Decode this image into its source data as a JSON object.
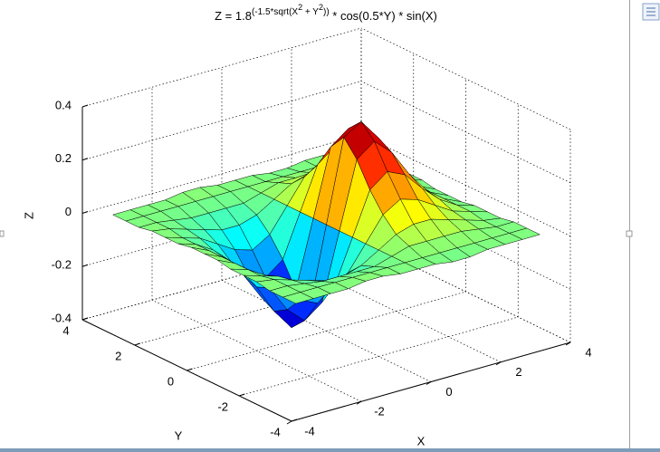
{
  "chart_data": {
    "type": "surface",
    "title": [
      {
        "text": "Z = 1.8",
        "level": 0
      },
      {
        "text": "(-1.5*sqrt(X",
        "level": 1
      },
      {
        "text": "2",
        "level": 2
      },
      {
        "text": " + Y",
        "level": 1
      },
      {
        "text": "2",
        "level": 2
      },
      {
        "text": "))",
        "level": 1
      },
      {
        "text": " * cos(0.5*Y) * sin(X)",
        "level": 0
      }
    ],
    "xlabel": "X",
    "ylabel": "Y",
    "zlabel": "Z",
    "x": [
      -3.5,
      -3,
      -2.5,
      -2,
      -1.5,
      -1,
      -0.5,
      0,
      0.5,
      1,
      1.5,
      2,
      2.5,
      3,
      3.5
    ],
    "y": [
      -3.5,
      -3,
      -2.5,
      -2,
      -1.5,
      -1,
      -0.5,
      0,
      0.5,
      1,
      1.5,
      2,
      2.5,
      3,
      3.5
    ],
    "z": [
      [
        0,
        0,
        0,
        0,
        0.01,
        0.01,
        0,
        0,
        0,
        -0.01,
        -0.01,
        0,
        0,
        0,
        0
      ],
      [
        0,
        0,
        0,
        0,
        0,
        0,
        0,
        0,
        0,
        0,
        0,
        0,
        0,
        0,
        0
      ],
      [
        0,
        0,
        -0.01,
        -0.02,
        -0.02,
        -0.02,
        -0.02,
        0,
        0.02,
        0.02,
        0.02,
        0.02,
        0.01,
        0,
        0
      ],
      [
        0.01,
        0,
        -0.02,
        -0.04,
        -0.06,
        -0.06,
        -0.04,
        0,
        0.04,
        0.06,
        0.06,
        0.04,
        0.02,
        0,
        -0.01
      ],
      [
        0.01,
        -0.01,
        -0.03,
        -0.07,
        -0.11,
        -0.13,
        -0.09,
        0,
        0.09,
        0.13,
        0.11,
        0.07,
        0.03,
        0.01,
        -0.01
      ],
      [
        0.01,
        -0.01,
        -0.05,
        -0.11,
        -0.18,
        -0.21,
        -0.16,
        0,
        0.16,
        0.21,
        0.18,
        0.11,
        0.05,
        0.01,
        -0.01
      ],
      [
        0.02,
        -0.01,
        -0.06,
        -0.14,
        -0.24,
        -0.3,
        -0.25,
        0,
        0.25,
        0.3,
        0.24,
        0.14,
        0.06,
        0.01,
        -0.02
      ],
      [
        0.02,
        -0.01,
        -0.07,
        -0.16,
        -0.27,
        -0.35,
        -0.31,
        0,
        0.31,
        0.35,
        0.27,
        0.16,
        0.07,
        0.01,
        -0.02
      ],
      [
        0.02,
        -0.01,
        -0.06,
        -0.14,
        -0.24,
        -0.3,
        -0.25,
        0,
        0.25,
        0.3,
        0.24,
        0.14,
        0.06,
        0.01,
        -0.02
      ],
      [
        0.01,
        -0.01,
        -0.05,
        -0.11,
        -0.18,
        -0.21,
        -0.16,
        0,
        0.16,
        0.21,
        0.18,
        0.11,
        0.05,
        0.01,
        -0.01
      ],
      [
        0.01,
        -0.01,
        -0.03,
        -0.07,
        -0.11,
        -0.13,
        -0.09,
        0,
        0.09,
        0.13,
        0.11,
        0.07,
        0.03,
        0.01,
        -0.01
      ],
      [
        0.01,
        0,
        -0.02,
        -0.04,
        -0.06,
        -0.06,
        -0.04,
        0,
        0.04,
        0.06,
        0.06,
        0.04,
        0.02,
        0,
        -0.01
      ],
      [
        0,
        0,
        -0.01,
        -0.02,
        -0.02,
        -0.02,
        -0.02,
        0,
        0.02,
        0.02,
        0.02,
        0.02,
        0.01,
        0,
        0
      ],
      [
        0,
        0,
        0,
        0,
        0,
        0,
        0,
        0,
        0,
        0,
        0,
        0,
        0,
        0,
        0
      ],
      [
        0,
        0,
        0,
        0,
        0.01,
        0.01,
        0,
        0,
        0,
        -0.01,
        -0.01,
        0,
        0,
        0,
        0
      ]
    ],
    "xlim": [
      -4,
      4
    ],
    "ylim": [
      -4,
      4
    ],
    "zlim": [
      -0.4,
      0.4
    ],
    "xticks": [
      -4,
      -2,
      0,
      2,
      4
    ],
    "yticks": [
      -4,
      -2,
      0,
      2,
      4
    ],
    "zticks": [
      -0.4,
      -0.2,
      0,
      0.2,
      0.4
    ],
    "grid": true,
    "colormap": "jet",
    "edge_color": "#000000"
  }
}
